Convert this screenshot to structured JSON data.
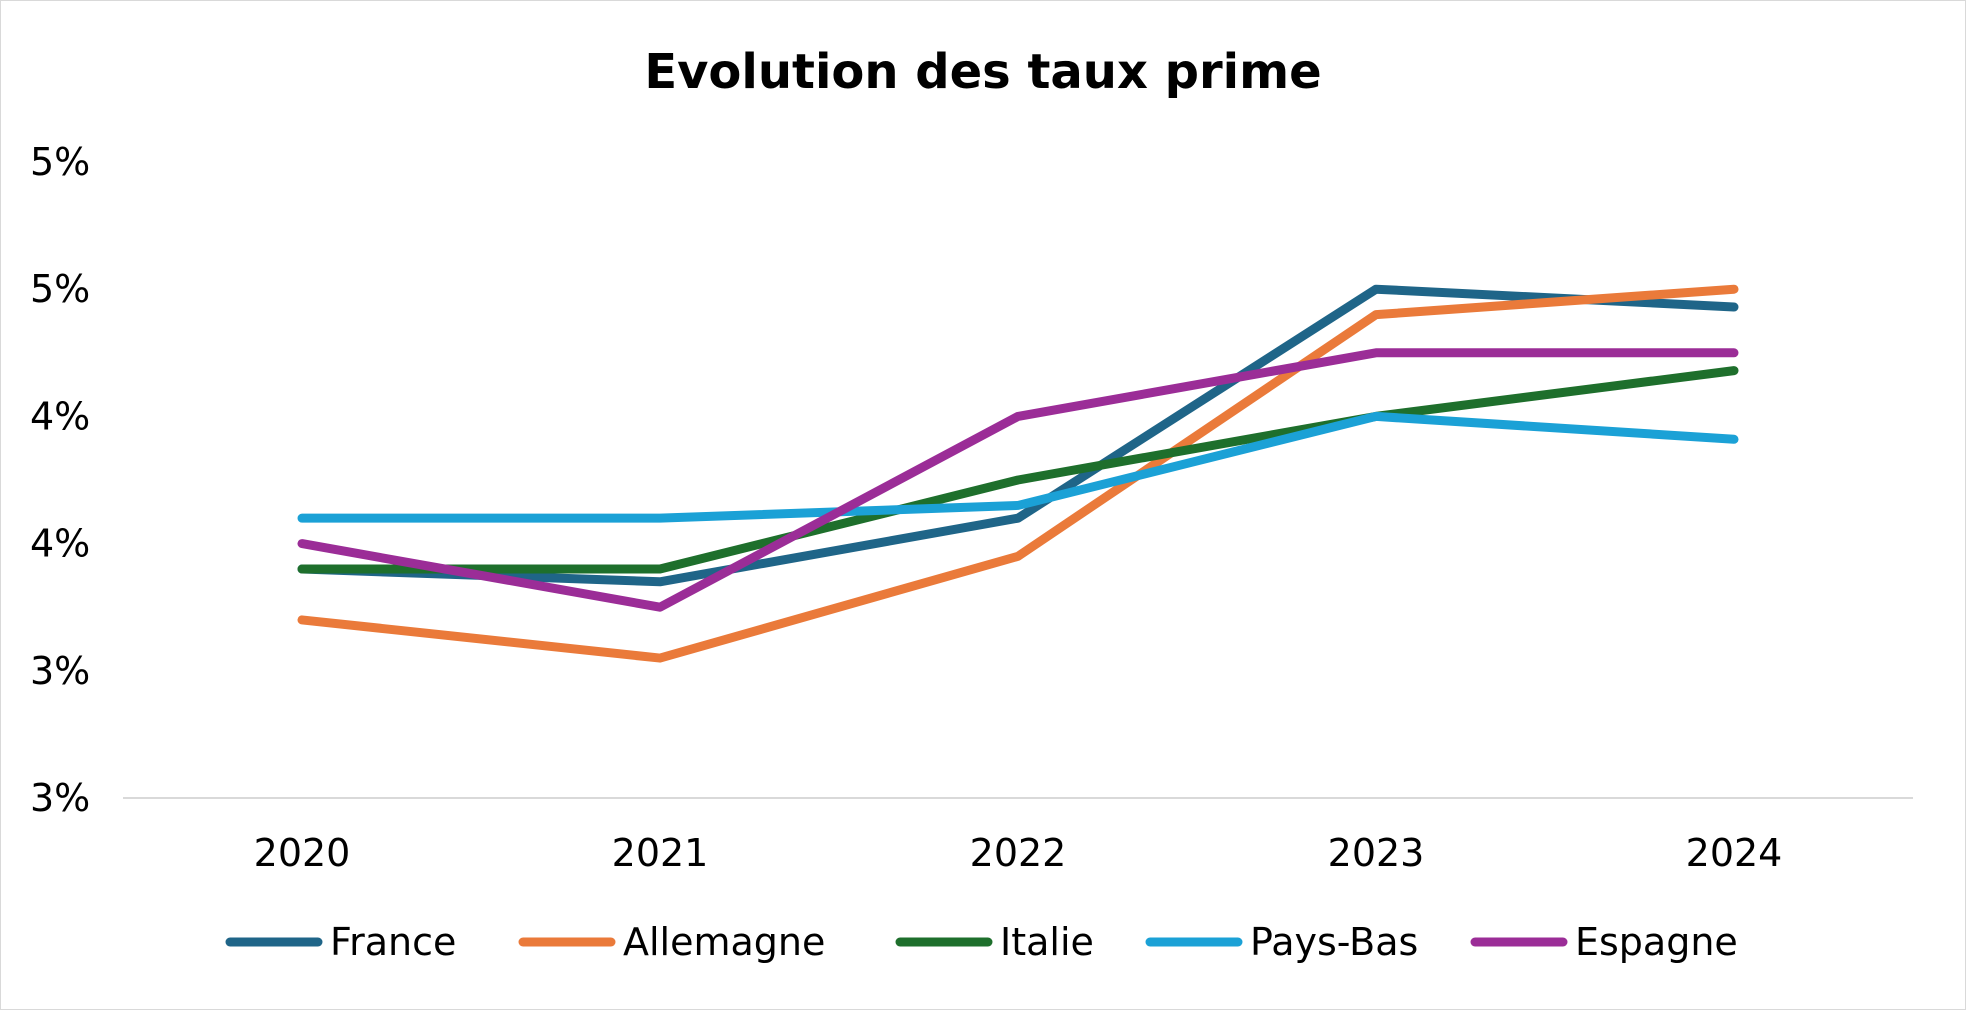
{
  "chart_data": {
    "type": "line",
    "title": "Evolution des taux prime",
    "xlabel": "",
    "ylabel": "",
    "categories": [
      "2020",
      "2021",
      "2022",
      "2023",
      "2024"
    ],
    "y_tick_labels": [
      "3%",
      "3%",
      "4%",
      "4%",
      "5%",
      "5%"
    ],
    "ylim": [
      2.5,
      5.0
    ],
    "grid": false,
    "legend_position": "bottom",
    "series": [
      {
        "name": "France",
        "color": "#1f6588",
        "values": [
          3.4,
          3.35,
          3.6,
          4.5,
          4.43
        ]
      },
      {
        "name": "Allemagne",
        "color": "#ea7a3a",
        "values": [
          3.2,
          3.05,
          3.45,
          4.4,
          4.5
        ]
      },
      {
        "name": "Italie",
        "color": "#1e6f2c",
        "values": [
          3.4,
          3.4,
          3.75,
          4.0,
          4.18
        ]
      },
      {
        "name": "Pays-Bas",
        "color": "#1ba1d6",
        "values": [
          3.6,
          3.6,
          3.65,
          4.0,
          3.91
        ]
      },
      {
        "name": "Espagne",
        "color": "#9b2d97",
        "values": [
          3.5,
          3.25,
          4.0,
          4.25,
          4.25
        ]
      }
    ]
  }
}
